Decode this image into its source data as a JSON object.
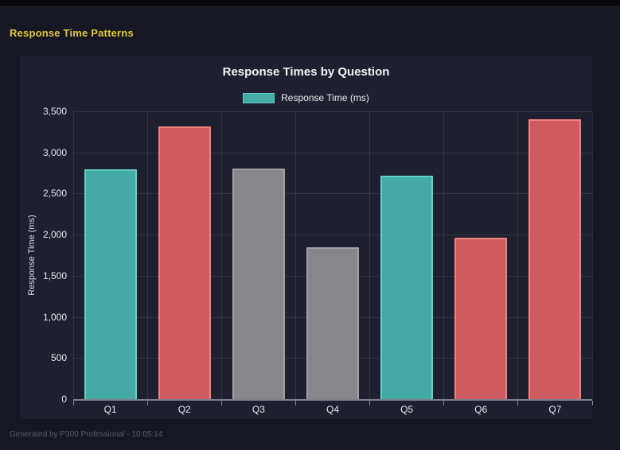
{
  "header": {
    "title": "Response Time Patterns",
    "color": "#e2c63b"
  },
  "footer": {
    "text": "Generated by P300 Professional - 10:05:14"
  },
  "chart_data": {
    "type": "bar",
    "title": "Response Times by Question",
    "legend": [
      {
        "label": "Response Time (ms)",
        "color": "#45aaa5",
        "border_color": "#5fd0c8"
      }
    ],
    "legend_position": "top",
    "categories": [
      "Q1",
      "Q2",
      "Q3",
      "Q4",
      "Q5",
      "Q6",
      "Q7"
    ],
    "values": [
      2790,
      3320,
      2800,
      1845,
      2720,
      1960,
      3400
    ],
    "bar_colors": [
      "#45aaa5",
      "#cf5b5f",
      "#87878b",
      "#87878b",
      "#45aaa5",
      "#cf5b5f",
      "#cf5b5f"
    ],
    "bar_border_colors": [
      "#5fd0c8",
      "#f08082",
      "#a0a0a6",
      "#a0a0a6",
      "#5fd0c8",
      "#f08082",
      "#f08082"
    ],
    "xlabel": "",
    "ylabel": "Response Time (ms)",
    "ylim": [
      0,
      3500
    ],
    "yticks": [
      0,
      500,
      1000,
      1500,
      2000,
      2500,
      3000,
      3500
    ],
    "ytick_labels": [
      "0",
      "500",
      "1,000",
      "1,500",
      "2,000",
      "2,500",
      "3,000",
      "3,500"
    ],
    "grid": true
  }
}
